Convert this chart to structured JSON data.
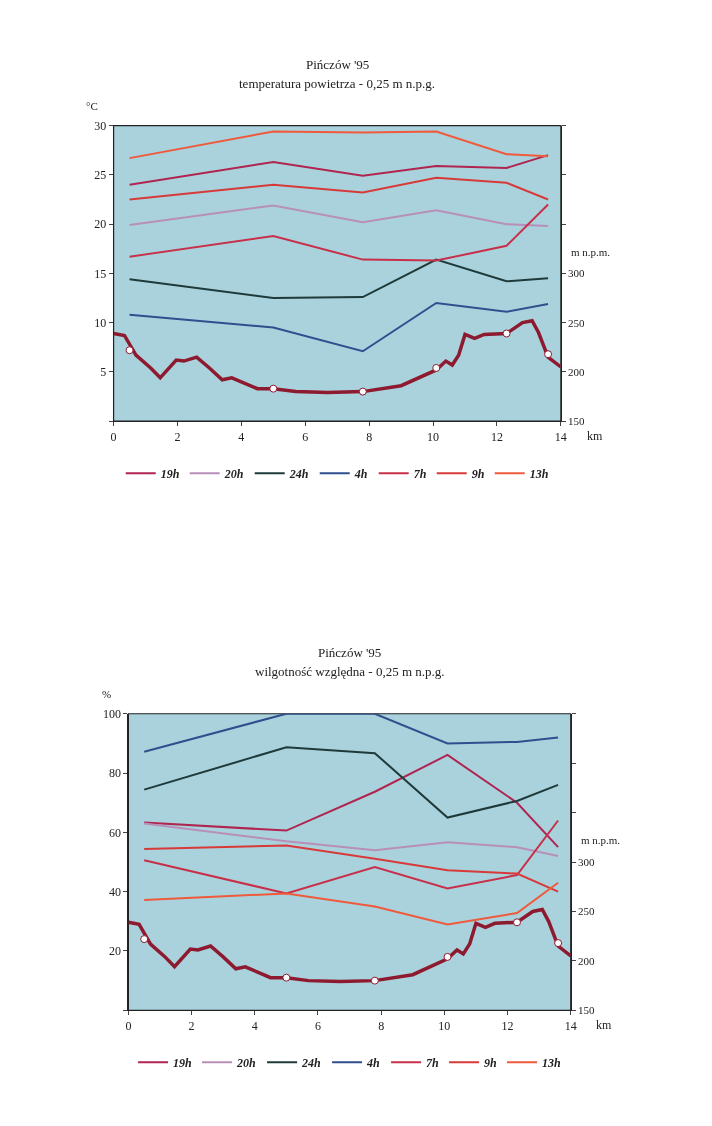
{
  "chart_data": [
    {
      "type": "line",
      "title": "Pińczów '95",
      "subtitle": "temperatura powietrza - 0,25 m n.p.g.",
      "xlabel": "km",
      "ylabel": "°C",
      "y2label": "m n.p.m.",
      "x": [
        0.5,
        5,
        7.8,
        10.1,
        12.3,
        13.6
      ],
      "xlim": [
        0,
        14
      ],
      "xticks": [
        0,
        2,
        4,
        6,
        8,
        10,
        12,
        14
      ],
      "ylim": [
        0,
        30
      ],
      "yticks": [
        {
          "value": 0,
          "label": null
        },
        5,
        10,
        15,
        20,
        25,
        30
      ],
      "y2lim": [
        150,
        450
      ],
      "y2ticks": [
        150,
        200,
        250,
        300,
        {
          "value": 350,
          "label": null
        },
        {
          "value": 400,
          "label": null
        },
        {
          "value": 450,
          "label": null
        }
      ],
      "legend": "bottom",
      "grid": false,
      "series": [
        {
          "name": "19h",
          "color": "#b02550",
          "values": [
            24.0,
            26.3,
            24.9,
            25.9,
            25.7,
            27.0
          ]
        },
        {
          "name": "20h",
          "color": "#b88fb8",
          "values": [
            19.9,
            21.9,
            20.2,
            21.4,
            20.0,
            19.8
          ]
        },
        {
          "name": "24h",
          "color": "#1f3a3a",
          "values": [
            14.4,
            12.5,
            12.6,
            16.4,
            14.2,
            14.5
          ]
        },
        {
          "name": "4h",
          "color": "#2f4f8f",
          "values": [
            10.8,
            9.5,
            7.1,
            12.0,
            11.1,
            11.9
          ]
        },
        {
          "name": "7h",
          "color": "#c8304a",
          "values": [
            16.7,
            18.8,
            16.4,
            16.3,
            17.8,
            22.0
          ]
        },
        {
          "name": "9h",
          "color": "#d83a3a",
          "values": [
            22.5,
            24.0,
            23.2,
            24.7,
            24.2,
            22.5
          ]
        },
        {
          "name": "13h",
          "color": "#f05a3c",
          "values": [
            26.7,
            29.4,
            29.3,
            29.4,
            27.1,
            26.9
          ]
        },
        {
          "axis": "y2",
          "color": "#8e1a30",
          "x": [
            0,
            0.34,
            0.7,
            1.16,
            1.46,
            1.96,
            2.2,
            2.6,
            3.0,
            3.4,
            3.7,
            4.5,
            5.0,
            5.7,
            6.7,
            7.8,
            9.0,
            10.1,
            10.4,
            10.6,
            10.8,
            11.0,
            11.3,
            11.6,
            12.3,
            12.8,
            13.1,
            13.3,
            13.6,
            14.0
          ],
          "values": [
            239,
            237,
            217,
            204,
            194,
            212,
            211,
            215,
            204,
            192,
            194,
            183,
            183,
            180,
            179,
            180,
            186,
            202,
            211,
            207,
            217,
            238,
            234,
            238,
            239,
            250,
            252,
            240,
            215,
            205
          ]
        },
        {
          "type": "scatter",
          "axis": "y2",
          "color": "#ffffff",
          "marker": "circle",
          "x": [
            0.5,
            5,
            7.8,
            10.1,
            12.3,
            13.6
          ],
          "values": [
            222,
            183,
            180,
            204,
            239,
            218
          ]
        }
      ]
    },
    {
      "type": "line",
      "title": "Pińczów '95",
      "subtitle": "wilgotność względna - 0,25 m n.p.g.",
      "xlabel": "km",
      "ylabel": "%",
      "y2label": "m n.p.m.",
      "x": [
        0.5,
        5,
        7.8,
        10.1,
        12.3,
        13.6
      ],
      "xlim": [
        0,
        14
      ],
      "xticks": [
        0,
        2,
        4,
        6,
        8,
        10,
        12,
        14
      ],
      "ylim": [
        0,
        100
      ],
      "yticks": [
        {
          "value": 0,
          "label": null
        },
        20,
        40,
        60,
        80,
        100
      ],
      "y2lim": [
        150,
        450
      ],
      "y2ticks": [
        150,
        200,
        250,
        300,
        {
          "value": 350,
          "label": null
        },
        {
          "value": 400,
          "label": null
        },
        {
          "value": 450,
          "label": null
        }
      ],
      "legend": "bottom",
      "grid": false,
      "series": [
        {
          "name": "19h",
          "color": "#b02550",
          "values": [
            63.3,
            60.6,
            73.7,
            86.1,
            70.0,
            55.0
          ]
        },
        {
          "name": "20h",
          "color": "#b88fb8",
          "values": [
            63.0,
            57.0,
            54.0,
            56.7,
            55.0,
            52.0
          ]
        },
        {
          "name": "24h",
          "color": "#1f3a3a",
          "values": [
            74.4,
            88.7,
            86.7,
            65.0,
            70.6,
            76.0
          ]
        },
        {
          "name": "4h",
          "color": "#2f4f8f",
          "values": [
            87.2,
            100,
            100,
            90.0,
            90.5,
            92.0
          ]
        },
        {
          "name": "7h",
          "color": "#c8304a",
          "values": [
            50.6,
            39.4,
            48.3,
            41.1,
            45.6,
            64.0
          ]
        },
        {
          "name": "9h",
          "color": "#d83a3a",
          "values": [
            54.4,
            55.6,
            51.1,
            47.2,
            46.1,
            40.0
          ]
        },
        {
          "name": "13h",
          "color": "#f05a3c",
          "values": [
            37.2,
            39.4,
            35.0,
            28.9,
            32.8,
            43.0
          ]
        },
        {
          "axis": "y2",
          "color": "#8e1a30",
          "x": [
            0,
            0.34,
            0.7,
            1.16,
            1.46,
            1.96,
            2.2,
            2.6,
            3.0,
            3.4,
            3.7,
            4.5,
            5.0,
            5.7,
            6.7,
            7.8,
            9.0,
            10.1,
            10.4,
            10.6,
            10.8,
            11.0,
            11.3,
            11.6,
            12.3,
            12.8,
            13.1,
            13.3,
            13.6,
            14.0
          ],
          "values": [
            239,
            237,
            217,
            204,
            194,
            212,
            211,
            215,
            204,
            192,
            194,
            183,
            183,
            180,
            179,
            180,
            186,
            202,
            211,
            207,
            217,
            238,
            234,
            238,
            239,
            250,
            252,
            240,
            215,
            205
          ]
        },
        {
          "type": "scatter",
          "axis": "y2",
          "color": "#ffffff",
          "marker": "circle",
          "x": [
            0.5,
            5,
            7.8,
            10.1,
            12.3,
            13.6
          ],
          "values": [
            222,
            183,
            180,
            204,
            239,
            218
          ]
        }
      ]
    }
  ]
}
